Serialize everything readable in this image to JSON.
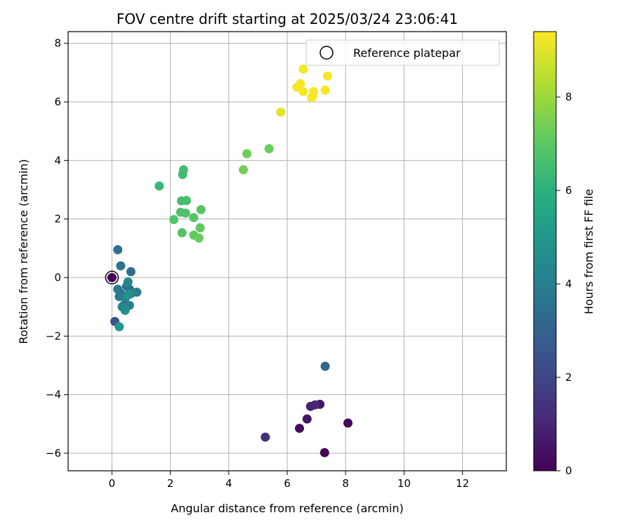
{
  "chart_data": {
    "type": "scatter",
    "title": "FOV centre drift starting at 2025/03/24 23:06:41",
    "xlabel": "Angular distance from reference (arcmin)",
    "ylabel": "Rotation from reference (arcmin)",
    "xlim": [
      -1.5,
      13.5
    ],
    "ylim": [
      -6.6,
      8.4
    ],
    "xticks": [
      0,
      2,
      4,
      6,
      8,
      10,
      12
    ],
    "yticks": [
      -6,
      -4,
      -2,
      0,
      2,
      4,
      6,
      8
    ],
    "grid": true,
    "legend": {
      "placement": "top-right",
      "entries": [
        "Reference platepar"
      ]
    },
    "colorbar": {
      "label": "Hours from first FF file",
      "colormap": "viridis",
      "range": [
        0,
        9.4
      ],
      "ticks": [
        0,
        2,
        4,
        6,
        8
      ]
    },
    "reference_point": {
      "x": 0,
      "y": 0
    },
    "points": [
      {
        "x": 0.0,
        "y": 0.0,
        "h": 0.0
      },
      {
        "x": 7.28,
        "y": -5.98,
        "h": 0.1
      },
      {
        "x": 8.08,
        "y": -4.97,
        "h": 0.2
      },
      {
        "x": 6.42,
        "y": -5.15,
        "h": 0.3
      },
      {
        "x": 6.68,
        "y": -4.83,
        "h": 0.5
      },
      {
        "x": 7.12,
        "y": -4.33,
        "h": 0.6
      },
      {
        "x": 6.8,
        "y": -4.4,
        "h": 0.8
      },
      {
        "x": 6.95,
        "y": -4.35,
        "h": 1.0
      },
      {
        "x": 5.25,
        "y": -5.45,
        "h": 1.3
      },
      {
        "x": 0.1,
        "y": -1.5,
        "h": 2.4
      },
      {
        "x": 7.3,
        "y": -3.03,
        "h": 3.0
      },
      {
        "x": 0.4,
        "y": -0.95,
        "h": 2.8
      },
      {
        "x": 0.6,
        "y": -0.4,
        "h": 3.2
      },
      {
        "x": 0.3,
        "y": -0.55,
        "h": 3.3
      },
      {
        "x": 0.65,
        "y": 0.2,
        "h": 3.4
      },
      {
        "x": 0.2,
        "y": 0.95,
        "h": 3.5
      },
      {
        "x": 0.3,
        "y": 0.4,
        "h": 3.6
      },
      {
        "x": 0.5,
        "y": -0.3,
        "h": 3.7
      },
      {
        "x": 0.2,
        "y": -0.4,
        "h": 3.8
      },
      {
        "x": 0.25,
        "y": -0.65,
        "h": 3.9
      },
      {
        "x": 0.85,
        "y": -0.5,
        "h": 4.0
      },
      {
        "x": 0.45,
        "y": -0.7,
        "h": 4.1
      },
      {
        "x": 0.6,
        "y": -0.95,
        "h": 4.2
      },
      {
        "x": 0.35,
        "y": -1.0,
        "h": 4.3
      },
      {
        "x": 0.55,
        "y": -0.15,
        "h": 4.4
      },
      {
        "x": 0.65,
        "y": -0.55,
        "h": 4.5
      },
      {
        "x": 0.45,
        "y": -1.12,
        "h": 4.6
      },
      {
        "x": 0.55,
        "y": -0.6,
        "h": 4.8
      },
      {
        "x": 0.25,
        "y": -1.68,
        "h": 5.0
      },
      {
        "x": 1.62,
        "y": 3.13,
        "h": 6.3
      },
      {
        "x": 2.45,
        "y": 3.68,
        "h": 6.5
      },
      {
        "x": 2.42,
        "y": 3.52,
        "h": 6.5
      },
      {
        "x": 2.38,
        "y": 2.62,
        "h": 6.6
      },
      {
        "x": 2.55,
        "y": 2.63,
        "h": 6.6
      },
      {
        "x": 2.35,
        "y": 2.23,
        "h": 6.7
      },
      {
        "x": 2.52,
        "y": 2.2,
        "h": 6.7
      },
      {
        "x": 2.12,
        "y": 1.98,
        "h": 6.8
      },
      {
        "x": 2.4,
        "y": 1.53,
        "h": 6.8
      },
      {
        "x": 2.8,
        "y": 2.05,
        "h": 6.9
      },
      {
        "x": 3.05,
        "y": 2.32,
        "h": 6.9
      },
      {
        "x": 3.02,
        "y": 1.7,
        "h": 7.0
      },
      {
        "x": 2.8,
        "y": 1.45,
        "h": 7.1
      },
      {
        "x": 2.98,
        "y": 1.35,
        "h": 7.2
      },
      {
        "x": 5.38,
        "y": 4.4,
        "h": 7.2
      },
      {
        "x": 4.62,
        "y": 4.23,
        "h": 7.3
      },
      {
        "x": 4.5,
        "y": 3.68,
        "h": 7.4
      },
      {
        "x": 5.78,
        "y": 5.65,
        "h": 9.0
      },
      {
        "x": 6.55,
        "y": 7.12,
        "h": 9.3
      },
      {
        "x": 7.38,
        "y": 6.88,
        "h": 9.3
      },
      {
        "x": 6.45,
        "y": 6.62,
        "h": 9.3
      },
      {
        "x": 6.33,
        "y": 6.5,
        "h": 9.3
      },
      {
        "x": 6.55,
        "y": 6.35,
        "h": 9.3
      },
      {
        "x": 6.9,
        "y": 6.35,
        "h": 9.3
      },
      {
        "x": 7.3,
        "y": 6.4,
        "h": 9.3
      },
      {
        "x": 6.88,
        "y": 6.2,
        "h": 9.3
      },
      {
        "x": 6.83,
        "y": 6.15,
        "h": 9.4
      }
    ]
  }
}
